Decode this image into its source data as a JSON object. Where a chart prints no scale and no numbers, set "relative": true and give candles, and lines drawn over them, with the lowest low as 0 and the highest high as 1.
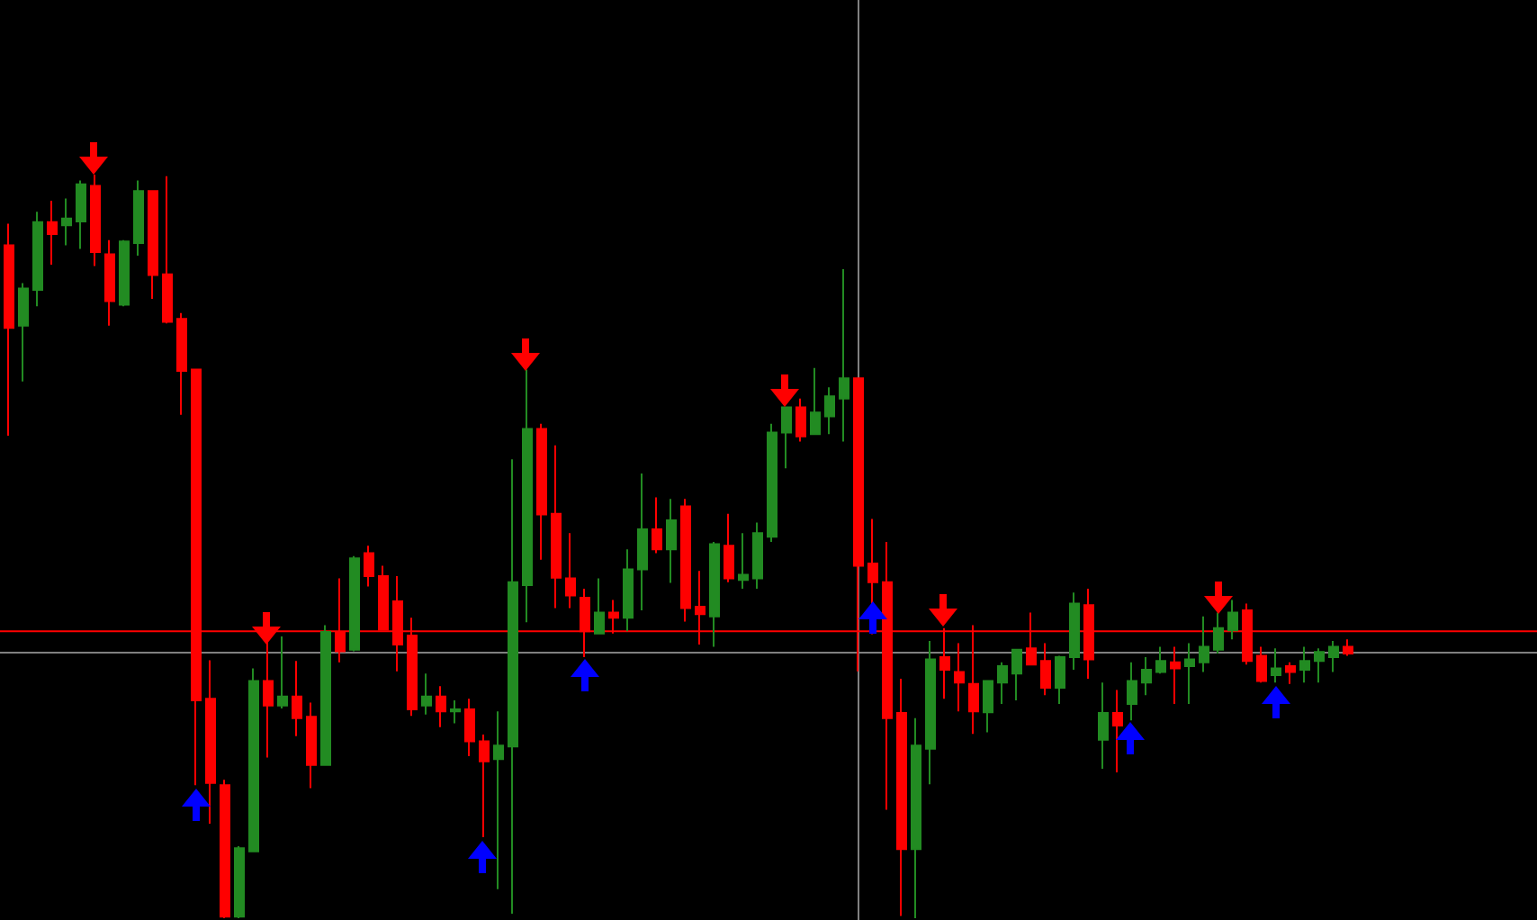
{
  "chart_data": {
    "type": "candlestick",
    "relative": true,
    "tick_labels": false,
    "grid": false,
    "categories": [
      null,
      null,
      null,
      null,
      null,
      null,
      null,
      null,
      null,
      null,
      null,
      null,
      null,
      null,
      null,
      null,
      null,
      null,
      null,
      null,
      null,
      null,
      null,
      null,
      null,
      null,
      null,
      null,
      null,
      null,
      null,
      null,
      null,
      null,
      null,
      null,
      null,
      null,
      null,
      null,
      null,
      null,
      null,
      null,
      null,
      null,
      null,
      null,
      null,
      null,
      null,
      null,
      null,
      null,
      null,
      null,
      null,
      null,
      null,
      null,
      null,
      null,
      null,
      null,
      null,
      null,
      null,
      null,
      null,
      null,
      null,
      null,
      null,
      null,
      null,
      null,
      null,
      null,
      null,
      null,
      null,
      null,
      null,
      null,
      null,
      null,
      null,
      null,
      null,
      null,
      null,
      null,
      null,
      null
    ],
    "ohlc": [
      [
        0.905,
        0.934,
        0.649,
        0.794
      ],
      [
        0.797,
        0.854,
        0.722,
        0.847
      ],
      [
        0.845,
        0.95,
        0.823,
        0.936
      ],
      [
        0.936,
        0.965,
        0.879,
        0.92
      ],
      [
        0.932,
        0.968,
        0.905,
        0.941
      ],
      [
        0.937,
        0.992,
        0.9,
        0.987
      ],
      [
        0.985,
        1,
        0.877,
        0.896
      ],
      [
        0.893,
        0.912,
        0.797,
        0.83
      ],
      [
        0.825,
        0.912,
        0.823,
        0.91
      ],
      [
        0.908,
        0.992,
        0.891,
        0.978
      ],
      [
        0.978,
        0.978,
        0.833,
        0.865
      ],
      [
        0.866,
        0.998,
        0.8,
        0.802
      ],
      [
        0.806,
        0.814,
        0.677,
        0.736
      ],
      [
        0.738,
        0.738,
        0.179,
        0.293
      ],
      [
        0.295,
        0.347,
        0.127,
        0.182
      ],
      [
        0.179,
        0.186,
        0,
        0.002
      ],
      [
        0.002,
        0.097,
        0,
        0.094
      ],
      [
        0.09,
        0.336,
        0.09,
        0.319
      ],
      [
        0.319,
        0.371,
        0.216,
        0.286
      ],
      [
        0.286,
        0.379,
        0.282,
        0.298
      ],
      [
        0.298,
        0.346,
        0.245,
        0.269
      ],
      [
        0.271,
        0.29,
        0.175,
        0.206
      ],
      [
        0.206,
        0.394,
        0.206,
        0.385
      ],
      [
        0.385,
        0.457,
        0.344,
        0.359
      ],
      [
        0.361,
        0.487,
        0.359,
        0.484
      ],
      [
        0.491,
        0.501,
        0.446,
        0.46
      ],
      [
        0.46,
        0.474,
        0.388,
        0.388
      ],
      [
        0.426,
        0.46,
        0.332,
        0.368
      ],
      [
        0.38,
        0.404,
        0.272,
        0.281
      ],
      [
        0.286,
        0.329,
        0.274,
        0.298
      ],
      [
        0.298,
        0.312,
        0.257,
        0.278
      ],
      [
        0.278,
        0.293,
        0.262,
        0.281
      ],
      [
        0.281,
        0.295,
        0.218,
        0.238
      ],
      [
        0.238,
        0.247,
        0.109,
        0.211
      ],
      [
        0.214,
        0.278,
        0.039,
        0.232
      ],
      [
        0.231,
        0.617,
        0.006,
        0.452
      ],
      [
        0.448,
        0.738,
        0.398,
        0.658
      ],
      [
        0.658,
        0.665,
        0.482,
        0.543
      ],
      [
        0.544,
        0.636,
        0.417,
        0.458
      ],
      [
        0.457,
        0.518,
        0.417,
        0.434
      ],
      [
        0.431,
        0.443,
        0.351,
        0.386
      ],
      [
        0.383,
        0.457,
        0.383,
        0.411
      ],
      [
        0.411,
        0.428,
        0.383,
        0.404
      ],
      [
        0.404,
        0.496,
        0.386,
        0.469
      ],
      [
        0.469,
        0.598,
        0.414,
        0.523
      ],
      [
        0.523,
        0.566,
        0.491,
        0.496
      ],
      [
        0.496,
        0.564,
        0.451,
        0.535
      ],
      [
        0.554,
        0.564,
        0.399,
        0.417
      ],
      [
        0.419,
        0.467,
        0.368,
        0.409
      ],
      [
        0.406,
        0.506,
        0.365,
        0.503
      ],
      [
        0.501,
        0.544,
        0.452,
        0.457
      ],
      [
        0.455,
        0.518,
        0.443,
        0.462
      ],
      [
        0.457,
        0.532,
        0.443,
        0.518
      ],
      [
        0.513,
        0.665,
        0.506,
        0.653
      ],
      [
        0.653,
        0.687,
        0.605,
        0.687
      ],
      [
        0.687,
        0.699,
        0.641,
        0.648
      ],
      [
        0.651,
        0.74,
        0.651,
        0.68
      ],
      [
        0.675,
        0.714,
        0.651,
        0.702
      ],
      [
        0.699,
        0.873,
        0.641,
        0.726
      ],
      [
        0.726,
        0.726,
        0.332,
        0.474
      ],
      [
        0.477,
        0.537,
        0.382,
        0.452
      ],
      [
        0.452,
        0.506,
        0.146,
        0.269
      ],
      [
        0.276,
        0.322,
        0.003,
        0.093
      ],
      [
        0.093,
        0.269,
        0,
        0.232
      ],
      [
        0.228,
        0.373,
        0.18,
        0.348
      ],
      [
        0.351,
        0.39,
        0.295,
        0.334
      ],
      [
        0.331,
        0.37,
        0.278,
        0.317
      ],
      [
        0.315,
        0.394,
        0.248,
        0.278
      ],
      [
        0.277,
        0.319,
        0.25,
        0.319
      ],
      [
        0.317,
        0.344,
        0.288,
        0.339
      ],
      [
        0.329,
        0.361,
        0.293,
        0.361
      ],
      [
        0.363,
        0.411,
        0.341,
        0.341
      ],
      [
        0.346,
        0.37,
        0.3,
        0.31
      ],
      [
        0.31,
        0.353,
        0.288,
        0.351
      ],
      [
        0.351,
        0.438,
        0.334,
        0.423
      ],
      [
        0.421,
        0.443,
        0.322,
        0.348
      ],
      [
        0.24,
        0.317,
        0.201,
        0.276
      ],
      [
        0.276,
        0.307,
        0.196,
        0.259
      ],
      [
        0.288,
        0.344,
        0.266,
        0.319
      ],
      [
        0.317,
        0.351,
        0.3,
        0.334
      ],
      [
        0.331,
        0.365,
        0.329,
        0.346
      ],
      [
        0.344,
        0.365,
        0.288,
        0.336
      ],
      [
        0.339,
        0.37,
        0.288,
        0.348
      ],
      [
        0.344,
        0.406,
        0.331,
        0.365
      ],
      [
        0.361,
        0.411,
        0.356,
        0.39
      ],
      [
        0.387,
        0.428,
        0.375,
        0.411
      ],
      [
        0.414,
        0.423,
        0.341,
        0.346
      ],
      [
        0.353,
        0.365,
        0.317,
        0.319
      ],
      [
        0.327,
        0.363,
        0.317,
        0.336
      ],
      [
        0.339,
        0.344,
        0.315,
        0.331
      ],
      [
        0.334,
        0.365,
        0.317,
        0.346
      ],
      [
        0.346,
        0.363,
        0.317,
        0.358
      ],
      [
        0.351,
        0.373,
        0.331,
        0.365
      ],
      [
        0.365,
        0.375,
        0.353,
        0.356
      ]
    ],
    "colors": [
      "#ff0000",
      "#228b22",
      "#228b22",
      "#ff0000",
      "#228b22",
      "#228b22",
      "#ff0000",
      "#ff0000",
      "#228b22",
      "#228b22",
      "#ff0000",
      "#ff0000",
      "#ff0000",
      "#ff0000",
      "#ff0000",
      "#ff0000",
      "#228b22",
      "#228b22",
      "#ff0000",
      "#228b22",
      "#ff0000",
      "#ff0000",
      "#228b22",
      "#ff0000",
      "#228b22",
      "#ff0000",
      "#ff0000",
      "#ff0000",
      "#ff0000",
      "#228b22",
      "#ff0000",
      "#228b22",
      "#ff0000",
      "#ff0000",
      "#228b22",
      "#228b22",
      "#228b22",
      "#ff0000",
      "#ff0000",
      "#ff0000",
      "#ff0000",
      "#228b22",
      "#ff0000",
      "#228b22",
      "#228b22",
      "#ff0000",
      "#228b22",
      "#ff0000",
      "#ff0000",
      "#228b22",
      "#ff0000",
      "#228b22",
      "#228b22",
      "#228b22",
      "#228b22",
      "#ff0000",
      "#228b22",
      "#228b22",
      "#228b22",
      "#ff0000",
      "#ff0000",
      "#ff0000",
      "#ff0000",
      "#228b22",
      "#228b22",
      "#ff0000",
      "#ff0000",
      "#ff0000",
      "#228b22",
      "#228b22",
      "#228b22",
      "#ff0000",
      "#ff0000",
      "#228b22",
      "#228b22",
      "#ff0000",
      "#228b22",
      "#ff0000",
      "#228b22",
      "#228b22",
      "#228b22",
      "#ff0000",
      "#228b22",
      "#228b22",
      "#228b22",
      "#228b22",
      "#ff0000",
      "#ff0000",
      "#228b22",
      "#ff0000",
      "#228b22",
      "#228b22",
      "#228b22",
      "#ff0000"
    ],
    "ref_lines": [
      {
        "axis": "y",
        "value": 0.386,
        "color": "#ff0000"
      },
      {
        "axis": "y",
        "value": 0.357,
        "color": "#808080"
      }
    ]
  }
}
